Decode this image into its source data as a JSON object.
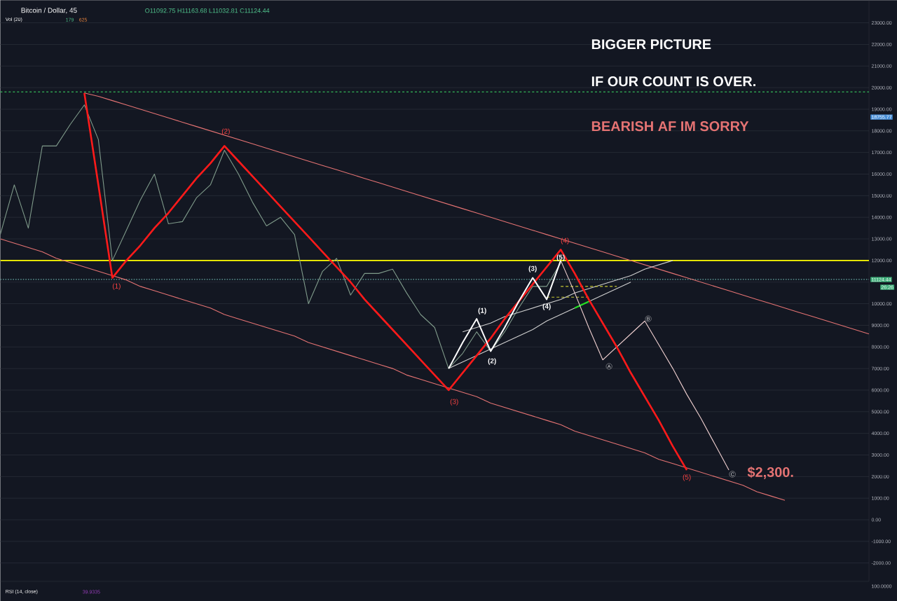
{
  "chart_data": {
    "type": "line",
    "title": "BIGGER PICTURE",
    "subtitle": "IF OUR COUNT IS OVER.",
    "categories": [
      null,
      null,
      null,
      null,
      null,
      null,
      null,
      null,
      null,
      null,
      null,
      null,
      null,
      null,
      null,
      null,
      null,
      null,
      null,
      null,
      null,
      null,
      null,
      null,
      null,
      null,
      null,
      null,
      null,
      null,
      null,
      null,
      null,
      null,
      null,
      null,
      null,
      null,
      null,
      null,
      null,
      null,
      null,
      null,
      null,
      null,
      null,
      null,
      null,
      null,
      null,
      null,
      null,
      null,
      null,
      null,
      null,
      null,
      null,
      null,
      null,
      null,
      null
    ],
    "ylim": [
      -2850,
      24050
    ],
    "yticks": [
      {
        "value": -2000,
        "label": "-2000.00"
      },
      {
        "value": -1000,
        "label": "-1000.00"
      },
      {
        "value": 0,
        "label": "0.00"
      },
      {
        "value": 1000,
        "label": "1000.00"
      },
      {
        "value": 2000,
        "label": "2000.00"
      },
      {
        "value": 3000,
        "label": "3000.00"
      },
      {
        "value": 4000,
        "label": "4000.00"
      },
      {
        "value": 5000,
        "label": "5000.00"
      },
      {
        "value": 6000,
        "label": "6000.00"
      },
      {
        "value": 7000,
        "label": "7000.00"
      },
      {
        "value": 8000,
        "label": "8000.00"
      },
      {
        "value": 9000,
        "label": "9000.00"
      },
      {
        "value": 10000,
        "label": "10000.00"
      },
      {
        "value": 11000,
        "label": null
      },
      {
        "value": 12000,
        "label": "12000.00"
      },
      {
        "value": 13000,
        "label": "13000.00"
      },
      {
        "value": 14000,
        "label": "14000.00"
      },
      {
        "value": 15000,
        "label": "15000.00"
      },
      {
        "value": 16000,
        "label": "16000.00"
      },
      {
        "value": 17000,
        "label": "17000.00"
      },
      {
        "value": 18000,
        "label": "18000.00"
      },
      {
        "value": 19000,
        "label": "19000.00"
      },
      {
        "value": 20000,
        "label": "20000.00"
      },
      {
        "value": 21000,
        "label": "21000.00"
      },
      {
        "value": 22000,
        "label": "22000.00"
      },
      {
        "value": 23000,
        "label": "23000.00"
      }
    ],
    "tick_labels": "y",
    "grid": "y",
    "series": [
      {
        "color": "#e57373",
        "values": [
          null,
          null,
          null,
          null,
          null,
          null,
          19750,
          19600,
          19400,
          19200,
          19000,
          18800,
          18600,
          18400,
          18200,
          18000,
          17800,
          17600,
          17400,
          17200,
          17000,
          16800,
          16600,
          16400,
          16200,
          16000,
          15800,
          15600,
          15400,
          15200,
          15000,
          14800,
          14600,
          14400,
          14200,
          14000,
          13800,
          13600,
          13400,
          13200,
          13000,
          12800,
          12600,
          12400,
          12200,
          12000,
          11800,
          11600,
          11400,
          11200,
          11000,
          10800,
          10600,
          10400,
          10200,
          10000,
          9800,
          9600,
          9400,
          9200,
          9000,
          8800,
          8600
        ]
      },
      {
        "color": "#e57373",
        "values": [
          13000,
          12800,
          12600,
          12400,
          12100,
          11900,
          11700,
          11500,
          11300,
          11100,
          10800,
          10600,
          10400,
          10200,
          10000,
          9800,
          9500,
          9300,
          9100,
          8900,
          8700,
          8500,
          8200,
          8000,
          7800,
          7600,
          7400,
          7200,
          7000,
          6700,
          6500,
          6300,
          6100,
          5900,
          5700,
          5400,
          5200,
          5000,
          4800,
          4600,
          4400,
          4100,
          3900,
          3700,
          3500,
          3300,
          3100,
          2800,
          2600,
          2400,
          2200,
          2000,
          1800,
          1600,
          1300,
          1100,
          900,
          null,
          null,
          null,
          null,
          null,
          null
        ]
      },
      {
        "color": "#7f9a8a",
        "values": [
          13200,
          15500,
          13500,
          17300,
          17300,
          18300,
          19200,
          17600,
          12000,
          13400,
          14800,
          16000,
          13700,
          13800,
          14900,
          15500,
          17100,
          16000,
          14700,
          13600,
          14000,
          13200,
          10000,
          11500,
          12100,
          10400,
          11400,
          11400,
          11600,
          10500,
          9500,
          8900,
          7000,
          7700,
          8700,
          7800,
          8700,
          9800,
          10800,
          10800,
          11900,
          null,
          null,
          null,
          null,
          null,
          null,
          null,
          null,
          null,
          null,
          null,
          null,
          null,
          null,
          null,
          null,
          null,
          null,
          null,
          null,
          null,
          null
        ]
      },
      {
        "color": "#d0d0d0",
        "values": [
          null,
          null,
          null,
          null,
          null,
          null,
          null,
          null,
          null,
          null,
          null,
          null,
          null,
          null,
          null,
          null,
          null,
          null,
          null,
          null,
          null,
          null,
          null,
          null,
          null,
          null,
          null,
          null,
          null,
          null,
          null,
          null,
          null,
          8700,
          8900,
          9100,
          9400,
          9600,
          9800,
          10000,
          10200,
          10500,
          10700,
          10900,
          11100,
          11300,
          11600,
          11800,
          12000,
          null,
          null,
          null,
          null,
          null,
          null,
          null,
          null,
          null,
          null,
          null,
          null,
          null,
          null
        ]
      },
      {
        "color": "#d0d0d0",
        "values": [
          null,
          null,
          null,
          null,
          null,
          null,
          null,
          null,
          null,
          null,
          null,
          null,
          null,
          null,
          null,
          null,
          null,
          null,
          null,
          null,
          null,
          null,
          null,
          null,
          null,
          null,
          null,
          null,
          null,
          null,
          null,
          null,
          7000,
          7300,
          7600,
          7900,
          8200,
          8500,
          8800,
          9200,
          9500,
          9800,
          10100,
          10400,
          10700,
          11000,
          null,
          null,
          null,
          null,
          null,
          null,
          null,
          null,
          null,
          null,
          null,
          null,
          null,
          null,
          null,
          null,
          null
        ]
      },
      {
        "color": "#22dd22",
        "values": [
          null,
          null,
          null,
          null,
          null,
          null,
          null,
          null,
          null,
          null,
          null,
          null,
          null,
          null,
          null,
          null,
          null,
          null,
          null,
          null,
          null,
          null,
          null,
          null,
          null,
          null,
          null,
          null,
          null,
          null,
          null,
          null,
          null,
          null,
          null,
          null,
          null,
          null,
          null,
          null,
          null,
          9800,
          10100,
          null,
          null,
          null,
          null,
          null,
          null,
          null,
          null,
          null,
          null,
          null,
          null,
          null,
          null,
          null,
          null,
          null,
          null,
          null,
          null
        ]
      },
      {
        "color": "#c8c832",
        "line_style": "dashed",
        "values": [
          null,
          null,
          null,
          null,
          null,
          null,
          null,
          null,
          null,
          null,
          null,
          null,
          null,
          null,
          null,
          null,
          null,
          null,
          null,
          null,
          null,
          null,
          null,
          null,
          null,
          null,
          null,
          null,
          null,
          null,
          null,
          null,
          null,
          null,
          null,
          null,
          null,
          null,
          null,
          null,
          10800,
          10800,
          10800,
          10800,
          10800,
          null,
          null,
          null,
          null,
          null,
          null,
          null,
          null,
          null,
          null,
          null,
          null,
          null,
          null,
          null,
          null,
          null,
          null
        ]
      },
      {
        "color": "#c8c832",
        "line_style": "dashed",
        "values": [
          null,
          null,
          null,
          null,
          null,
          null,
          null,
          null,
          null,
          null,
          null,
          null,
          null,
          null,
          null,
          null,
          null,
          null,
          null,
          null,
          null,
          null,
          null,
          null,
          null,
          null,
          null,
          null,
          null,
          null,
          null,
          null,
          null,
          null,
          null,
          null,
          null,
          null,
          null,
          10300,
          10300,
          10300,
          10300,
          null,
          null,
          null,
          null,
          null,
          null,
          null,
          null,
          null,
          null,
          null,
          null,
          null,
          null,
          null,
          null,
          null,
          null,
          null,
          null
        ]
      },
      {
        "color": "#f0d0d0",
        "values": [
          null,
          null,
          null,
          null,
          null,
          null,
          null,
          null,
          null,
          null,
          null,
          null,
          null,
          null,
          null,
          null,
          null,
          null,
          null,
          null,
          null,
          null,
          null,
          null,
          null,
          null,
          null,
          null,
          null,
          null,
          null,
          null,
          null,
          null,
          null,
          null,
          null,
          null,
          null,
          null,
          12000,
          10500,
          8900,
          7400,
          8000,
          8600,
          9200,
          8100,
          7000,
          5800,
          4700,
          3500,
          2300,
          null,
          null,
          null,
          null,
          null,
          null,
          null,
          null,
          null,
          null
        ]
      },
      {
        "color": "#ff1a1a",
        "values": [
          null,
          null,
          null,
          null,
          null,
          null,
          19750,
          15500,
          11200,
          12000,
          12700,
          13500,
          14200,
          15000,
          15800,
          16500,
          17300,
          16600,
          15900,
          15200,
          14500,
          13800,
          13100,
          12400,
          11700,
          11000,
          10200,
          9500,
          8800,
          8100,
          7400,
          6700,
          6000,
          6800,
          7600,
          8400,
          9300,
          10100,
          10900,
          11700,
          12500,
          11400,
          10200,
          9100,
          8000,
          6800,
          5700,
          4600,
          3400,
          2300,
          null,
          null,
          null,
          null,
          null,
          null,
          null,
          null,
          null,
          null,
          null,
          null,
          null
        ]
      },
      {
        "color": "#ffffff",
        "values": [
          null,
          null,
          null,
          null,
          null,
          null,
          null,
          null,
          null,
          null,
          null,
          null,
          null,
          null,
          null,
          null,
          null,
          null,
          null,
          null,
          null,
          null,
          null,
          null,
          null,
          null,
          null,
          null,
          null,
          null,
          null,
          null,
          7000,
          8200,
          9300,
          7800,
          8900,
          10100,
          11200,
          10200,
          12000,
          null,
          null,
          null,
          null,
          null,
          null,
          null,
          null,
          null,
          null,
          null,
          null,
          null,
          null,
          null,
          null,
          null,
          null,
          null,
          null,
          null,
          null
        ]
      }
    ],
    "ref_lines": [
      {
        "axis": "y",
        "value": 12000,
        "color": "#ffff00"
      },
      {
        "axis": "y",
        "value": 19800,
        "color": "#2e9e4f",
        "line_style": "dashed"
      },
      {
        "axis": "y",
        "value": 11124.44,
        "color": "#4f7f7f",
        "line_style": "dotted"
      }
    ],
    "annotations": [
      "Bitcoin / Dollar, 45",
      "O11092.75 H11163.68 L11032.81 C11124.44",
      "Vol (20)",
      "179",
      "625",
      "RSI (14, close)",
      "39.9335",
      "100.0000",
      "18755.77",
      "11124.44",
      "26:26",
      "BEARISH AF IM SORRY",
      "$2,300.",
      "(1)",
      "(2)",
      "(3)",
      "(4)",
      "(5)",
      "(1)",
      "(2)",
      "(3)",
      "(4)",
      "(5)",
      "A",
      "B",
      "C"
    ]
  }
}
